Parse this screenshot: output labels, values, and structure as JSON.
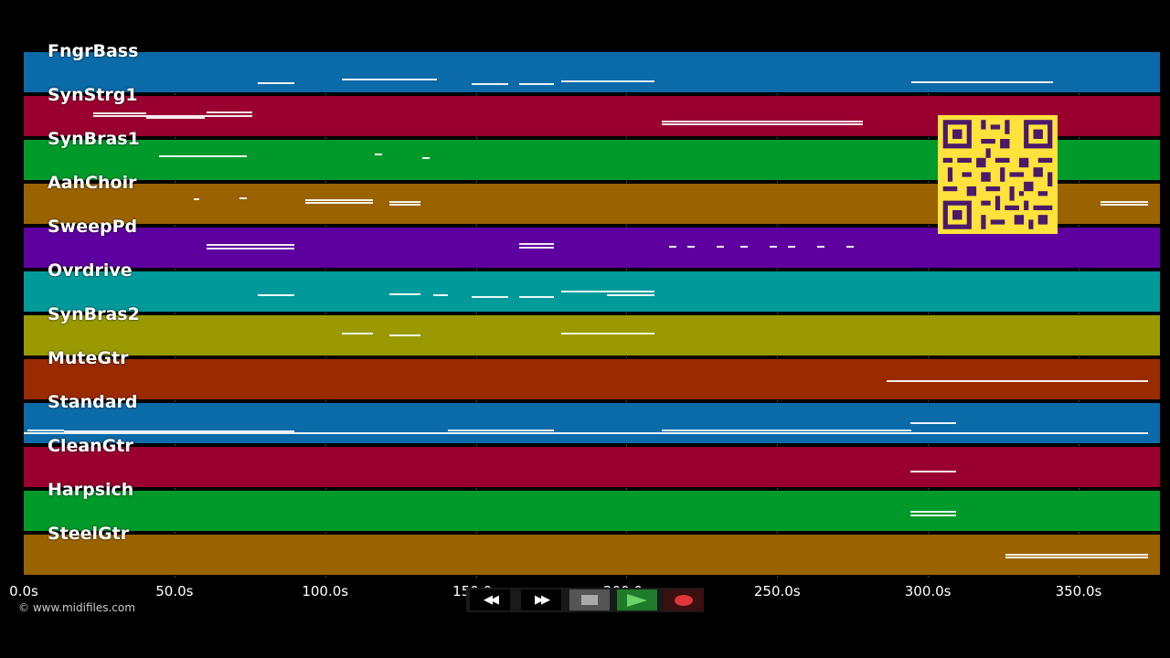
{
  "tracks": [
    {
      "label": "FngrBass",
      "color": "#0b6aa8"
    },
    {
      "label": "SynStrg1",
      "color": "#99002f"
    },
    {
      "label": "SynBras1",
      "color": "#009a2b"
    },
    {
      "label": "AahChoir",
      "color": "#9a6300"
    },
    {
      "label": "SweepPd",
      "color": "#5e00a0"
    },
    {
      "label": "Ovrdrive",
      "color": "#009a9a"
    },
    {
      "label": "SynBras2",
      "color": "#9a9a00"
    },
    {
      "label": "MuteGtr",
      "color": "#9a2b00"
    },
    {
      "label": "Standard",
      "color": "#0b6aa8"
    },
    {
      "label": "CleanGtr",
      "color": "#99002f"
    },
    {
      "label": "Harpsich",
      "color": "#009a2b"
    },
    {
      "label": "SteelGtr",
      "color": "#9a6300"
    }
  ],
  "timeline": {
    "ticks": [
      {
        "label": "0.0s",
        "seconds": 0
      },
      {
        "label": "50.0s",
        "seconds": 50
      },
      {
        "label": "100.0s",
        "seconds": 100
      },
      {
        "label": "150.0s",
        "seconds": 150
      },
      {
        "label": "200.0s",
        "seconds": 200
      },
      {
        "label": "250.0s",
        "seconds": 250
      },
      {
        "label": "300.0s",
        "seconds": 300
      },
      {
        "label": "350.0s",
        "seconds": 350
      }
    ],
    "max_seconds": 377
  },
  "controls": {
    "rewind_icon": "rewind-icon",
    "fast_forward_icon": "fast-forward-icon",
    "stop_icon": "stop-icon",
    "play_icon": "play-icon",
    "record_icon": "record-icon",
    "rewind_label": "◀◀",
    "fast_forward_label": "▶▶"
  },
  "footer": {
    "copyright": "© www.midifiles.com"
  },
  "overlay": {
    "qr_icon": "qr-code-icon"
  }
}
